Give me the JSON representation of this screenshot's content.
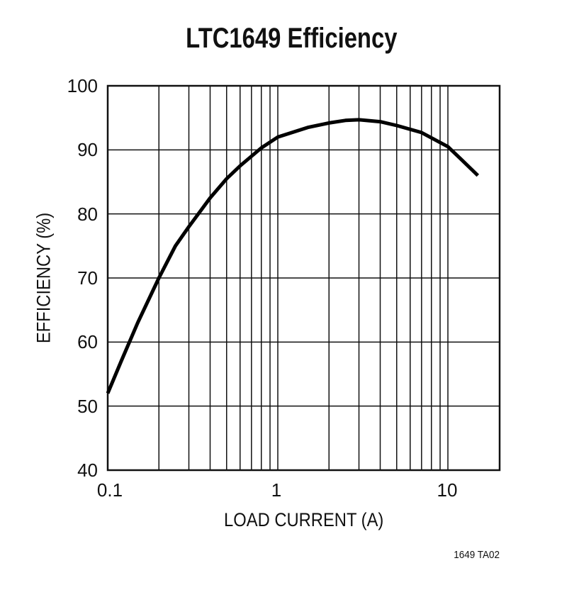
{
  "chart_data": {
    "type": "line",
    "title": "LTC1649 Efficiency",
    "xlabel": "LOAD CURRENT (A)",
    "ylabel": "EFFICIENCY (%)",
    "xscale": "log",
    "xlim": [
      0.1,
      20
    ],
    "ylim": [
      40,
      100
    ],
    "grid": true,
    "x_ticks": [
      "0.1",
      "1",
      "10"
    ],
    "y_ticks": [
      "40",
      "50",
      "60",
      "70",
      "80",
      "90",
      "100"
    ],
    "series": [
      {
        "name": "Efficiency",
        "x": [
          0.1,
          0.12,
          0.15,
          0.2,
          0.25,
          0.3,
          0.4,
          0.5,
          0.6,
          0.7,
          0.8,
          1.0,
          1.5,
          2.0,
          2.5,
          3.0,
          4.0,
          5.0,
          7.0,
          10.0,
          12.0,
          15.0
        ],
        "y": [
          52,
          57,
          63,
          70,
          75,
          78,
          82.5,
          85.5,
          87.5,
          89,
          90.3,
          92,
          93.5,
          94.2,
          94.6,
          94.7,
          94.4,
          93.8,
          92.7,
          90.5,
          88.5,
          86
        ]
      }
    ],
    "annotations": [
      "1649 TA02"
    ]
  },
  "header": {
    "title": "LTC1649 Efficiency"
  },
  "axes": {
    "xlabel": "LOAD CURRENT (A)",
    "ylabel": "EFFICIENCY (%)",
    "x_ticks": [
      "0.1",
      "1",
      "10"
    ],
    "y_ticks": [
      "100",
      "90",
      "80",
      "70",
      "60",
      "50",
      "40"
    ]
  },
  "footer": {
    "code": "1649 TA02"
  }
}
